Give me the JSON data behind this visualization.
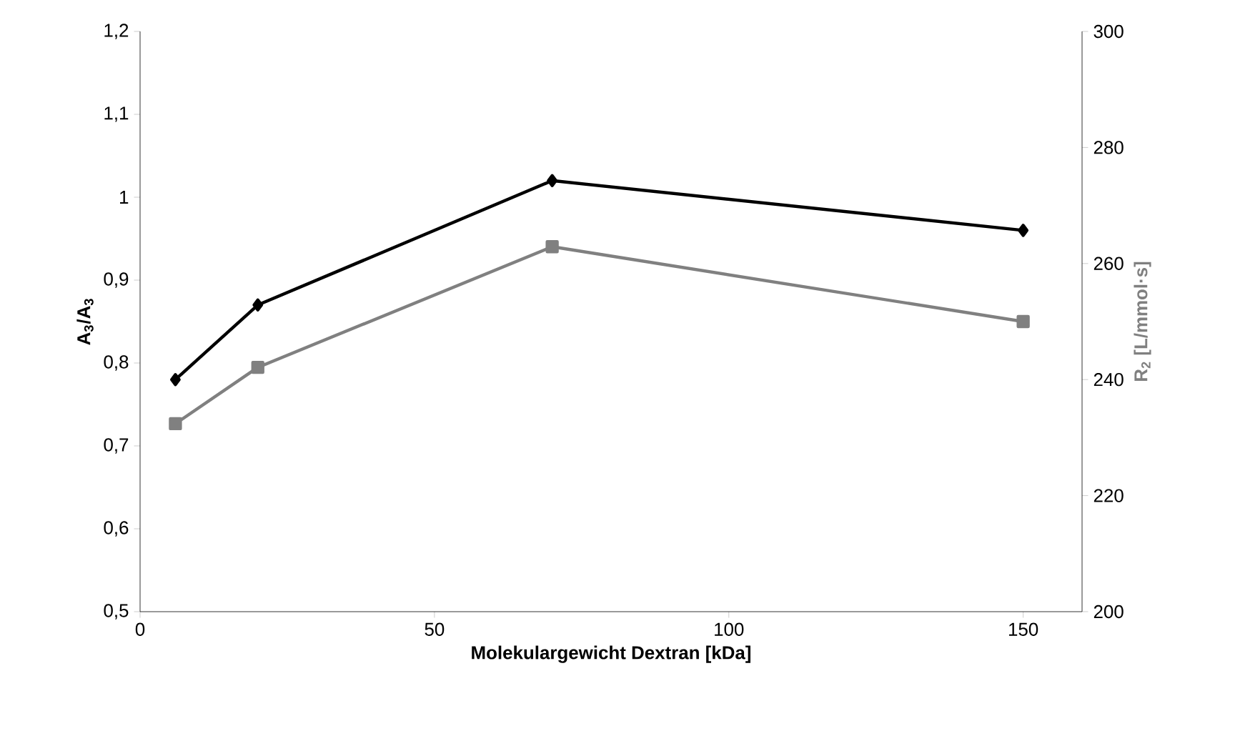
{
  "chart_data": {
    "type": "line",
    "xlabel": "Molekulargewicht Dextran [kDa]",
    "ylabel": "A$_{3}$/A$_{3}$",
    "y2label": "R$_{2}$ [L/mmol·s]",
    "x": [
      6,
      20,
      70,
      150
    ],
    "series": [
      {
        "color": "#000000",
        "marker": "diamond",
        "values": [
          0.78,
          0.87,
          1.02,
          0.96
        ]
      },
      {
        "color": "#808080",
        "marker": "square",
        "axis": "y2",
        "values": [
          232.4,
          242.1,
          262.9,
          250
        ]
      }
    ],
    "xlim": [
      0,
      160
    ],
    "xticks": [
      0,
      50,
      100,
      150
    ],
    "ylim": [
      0.5,
      1.2
    ],
    "yticks": [
      {
        "value": 0.5,
        "label": "0,5"
      },
      {
        "value": 0.6,
        "label": "0,6"
      },
      {
        "value": 0.7,
        "label": "0,7"
      },
      {
        "value": 0.8,
        "label": "0,8"
      },
      {
        "value": 0.9,
        "label": "0,9"
      },
      {
        "value": 1,
        "label": "1"
      },
      {
        "value": 1.1,
        "label": "1,1"
      },
      {
        "value": 1.2,
        "label": "1,2"
      }
    ],
    "y2lim": [
      200,
      300
    ],
    "y2ticks": [
      200,
      220,
      240,
      260,
      280,
      300
    ],
    "grid": false,
    "line_style": "solid"
  }
}
